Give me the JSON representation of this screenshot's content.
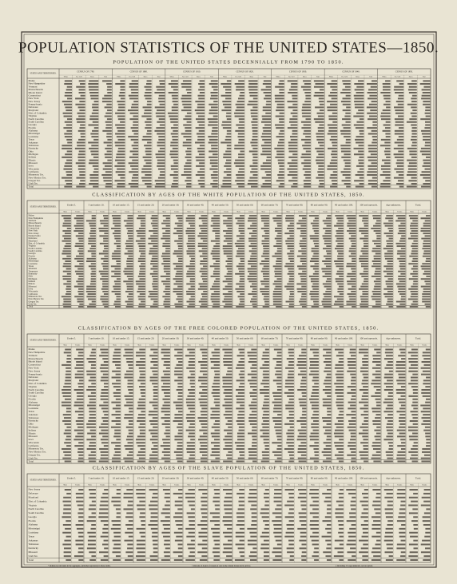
{
  "title": "POPULATION STATISTICS OF THE UNITED STATES—1850.",
  "states": [
    "Maine",
    "New Hampshire",
    "Vermont",
    "Massachusetts",
    "Rhode Island",
    "Connecticut",
    "New York",
    "New Jersey",
    "Pennsylvania",
    "Delaware",
    "Maryland",
    "Dist. of Columbia",
    "Virginia",
    "North Carolina",
    "South Carolina",
    "Georgia",
    "Florida",
    "Alabama",
    "Mississippi",
    "Louisiana",
    "Texas",
    "Arkansas",
    "Tennessee",
    "Kentucky",
    "Ohio",
    "Michigan",
    "Indiana",
    "Illinois",
    "Missouri",
    "Iowa",
    "Wisconsin",
    "California",
    "Minnesota Ter.",
    "New Mexico Ter.",
    "Oregon Ter.",
    "Utah Ter."
  ],
  "total_label": "Total",
  "sections": [
    {
      "heading": "POPULATION OF THE UNITED STATES DECENNIALLY FROM 1790 TO 1850.",
      "first_header": "STATES AND TERRITORIES.",
      "columns": [
        "CENSUS OF 1790.",
        "CENSUS OF 1800.",
        "CENSUS OF 1810.",
        "CENSUS OF 1820.",
        "CENSUS OF 1830.",
        "CENSUS OF 1840.",
        "CENSUS OF 1850."
      ],
      "sub": [
        "Whites",
        "Free Col'd",
        "Slaves",
        "Total"
      ]
    },
    {
      "heading": "CLASSIFICATION BY AGES OF THE WHITE POPULATION OF THE UNITED STATES, 1850.",
      "first_header": "STATES AND TERRITORIES.",
      "columns": [
        "Under 5.",
        "5 and under 10.",
        "10 and under 15.",
        "15 and under 20.",
        "20 and under 30.",
        "30 and under 40.",
        "40 and under 50.",
        "50 and under 60.",
        "60 and under 70.",
        "70 and under 80.",
        "80 and under 90.",
        "90 and under 100.",
        "100 and upwards.",
        "Age unknown.",
        "Total."
      ],
      "sub": [
        "Males",
        "Females"
      ]
    },
    {
      "heading": "CLASSIFICATION BY AGES OF THE FREE COLORED POPULATION OF THE UNITED STATES, 1850.",
      "first_header": "STATES AND TERRITORIES.",
      "columns": [
        "Under 5.",
        "5 and under 10.",
        "10 and under 15.",
        "15 and under 20.",
        "20 and under 30.",
        "30 and under 40.",
        "40 and under 50.",
        "50 and under 60.",
        "60 and under 70.",
        "70 and under 80.",
        "80 and under 90.",
        "90 and under 100.",
        "100 and upwards.",
        "Age unknown.",
        "Total."
      ],
      "sub": [
        "Males",
        "Females"
      ]
    },
    {
      "heading": "CLASSIFICATION BY AGES OF THE SLAVE POPULATION OF THE UNITED STATES, 1850.",
      "first_header": "STATES AND TERRITORIES.",
      "rows": [
        "New Jersey",
        "Delaware",
        "Maryland",
        "Dist. of Columbia",
        "Virginia",
        "North Carolina",
        "South Carolina",
        "Georgia",
        "Florida",
        "Alabama",
        "Mississippi",
        "Louisiana",
        "Texas",
        "Arkansas",
        "Tennessee",
        "Kentucky",
        "Missouri",
        "Utah Ter."
      ],
      "columns": [
        "Under 5.",
        "5 and under 10.",
        "10 and under 15.",
        "15 and under 20.",
        "20 and under 30.",
        "30 and under 40.",
        "40 and under 50.",
        "50 and under 60.",
        "60 and under 70.",
        "70 and under 80.",
        "80 and under 90.",
        "90 and under 100.",
        "100 and upwards.",
        "Age unknown.",
        "Total."
      ],
      "sub": [
        "Males",
        "Females"
      ]
    }
  ],
  "footnotes": [
    "* Indians not included in the aggregate, published separately in these items.",
    "† Persons on board of vessels of war in the United States naval service.",
    "‡ Including 374 age unknown, sex not given."
  ]
}
